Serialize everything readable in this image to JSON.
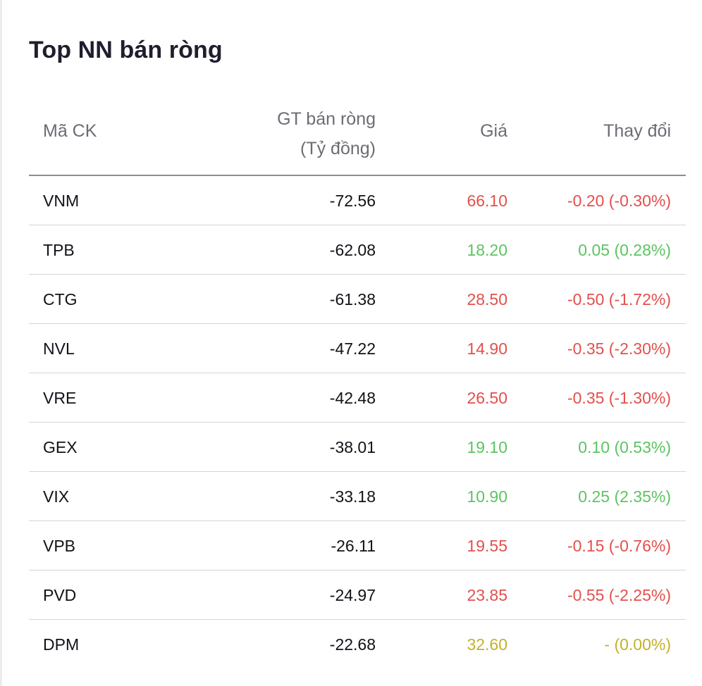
{
  "title": "Top NN bán ròng",
  "columns": {
    "code": "Mã CK",
    "value_line1": "GT bán ròng",
    "value_line2": "(Tỷ đồng)",
    "price": "Giá",
    "change": "Thay đổi"
  },
  "colors": {
    "down": "#e2504c",
    "up": "#5cc462",
    "flat": "#c4b12a"
  },
  "rows": [
    {
      "code": "VNM",
      "value": "-72.56",
      "price": "66.10",
      "change": "-0.20 (-0.30%)",
      "trend": "down"
    },
    {
      "code": "TPB",
      "value": "-62.08",
      "price": "18.20",
      "change": "0.05 (0.28%)",
      "trend": "up"
    },
    {
      "code": "CTG",
      "value": "-61.38",
      "price": "28.50",
      "change": "-0.50 (-1.72%)",
      "trend": "down"
    },
    {
      "code": "NVL",
      "value": "-47.22",
      "price": "14.90",
      "change": "-0.35 (-2.30%)",
      "trend": "down"
    },
    {
      "code": "VRE",
      "value": "-42.48",
      "price": "26.50",
      "change": "-0.35 (-1.30%)",
      "trend": "down"
    },
    {
      "code": "GEX",
      "value": "-38.01",
      "price": "19.10",
      "change": "0.10 (0.53%)",
      "trend": "up"
    },
    {
      "code": "VIX",
      "value": "-33.18",
      "price": "10.90",
      "change": "0.25 (2.35%)",
      "trend": "up"
    },
    {
      "code": "VPB",
      "value": "-26.11",
      "price": "19.55",
      "change": "-0.15 (-0.76%)",
      "trend": "down"
    },
    {
      "code": "PVD",
      "value": "-24.97",
      "price": "23.85",
      "change": "-0.55 (-2.25%)",
      "trend": "down"
    },
    {
      "code": "DPM",
      "value": "-22.68",
      "price": "32.60",
      "change": "- (0.00%)",
      "trend": "flat"
    }
  ]
}
